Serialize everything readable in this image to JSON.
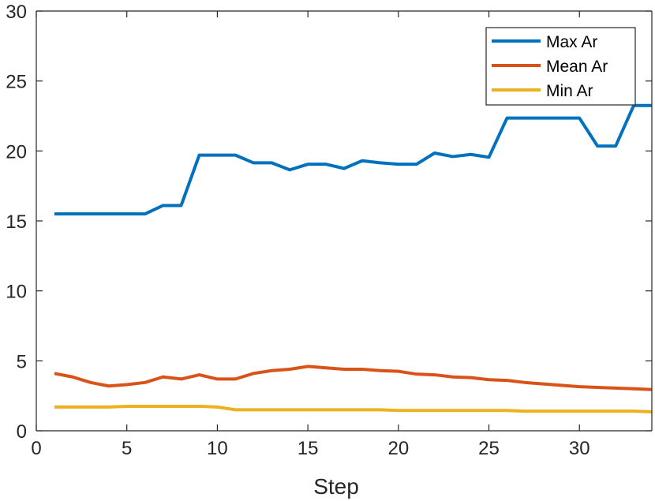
{
  "chart_data": {
    "type": "line",
    "title": "",
    "xlabel": "Step",
    "ylabel": "",
    "xlim": [
      0,
      34
    ],
    "ylim": [
      0,
      30
    ],
    "xticks": [
      0,
      5,
      10,
      15,
      20,
      25,
      30
    ],
    "yticks": [
      0,
      5,
      10,
      15,
      20,
      25,
      30
    ],
    "grid": false,
    "legend_position": "top-right",
    "x": [
      1,
      2,
      3,
      4,
      5,
      6,
      7,
      8,
      9,
      10,
      11,
      12,
      13,
      14,
      15,
      16,
      17,
      18,
      19,
      20,
      21,
      22,
      23,
      24,
      25,
      26,
      27,
      28,
      29,
      30,
      31,
      32,
      33,
      34
    ],
    "series": [
      {
        "name": "Max Ar",
        "color": "#0072BD",
        "values": [
          15.5,
          15.5,
          15.5,
          15.5,
          15.5,
          15.5,
          16.1,
          16.1,
          19.7,
          19.7,
          19.7,
          19.15,
          19.15,
          18.65,
          19.05,
          19.05,
          18.75,
          19.3,
          19.15,
          19.05,
          19.05,
          19.85,
          19.6,
          19.75,
          19.55,
          22.35,
          22.35,
          22.35,
          22.35,
          22.35,
          20.35,
          20.35,
          23.25,
          23.25
        ]
      },
      {
        "name": "Mean Ar",
        "color": "#D95319",
        "values": [
          4.1,
          3.85,
          3.45,
          3.2,
          3.3,
          3.45,
          3.85,
          3.7,
          4.0,
          3.7,
          3.7,
          4.1,
          4.3,
          4.4,
          4.6,
          4.5,
          4.4,
          4.4,
          4.3,
          4.25,
          4.05,
          4.0,
          3.85,
          3.8,
          3.65,
          3.6,
          3.45,
          3.35,
          3.25,
          3.15,
          3.1,
          3.05,
          3.0,
          2.95
        ]
      },
      {
        "name": "Min Ar",
        "color": "#EDB120",
        "values": [
          1.7,
          1.7,
          1.7,
          1.7,
          1.75,
          1.75,
          1.75,
          1.75,
          1.75,
          1.7,
          1.5,
          1.5,
          1.5,
          1.5,
          1.5,
          1.5,
          1.5,
          1.5,
          1.5,
          1.45,
          1.45,
          1.45,
          1.45,
          1.45,
          1.45,
          1.45,
          1.4,
          1.4,
          1.4,
          1.4,
          1.4,
          1.4,
          1.4,
          1.35
        ]
      }
    ]
  }
}
